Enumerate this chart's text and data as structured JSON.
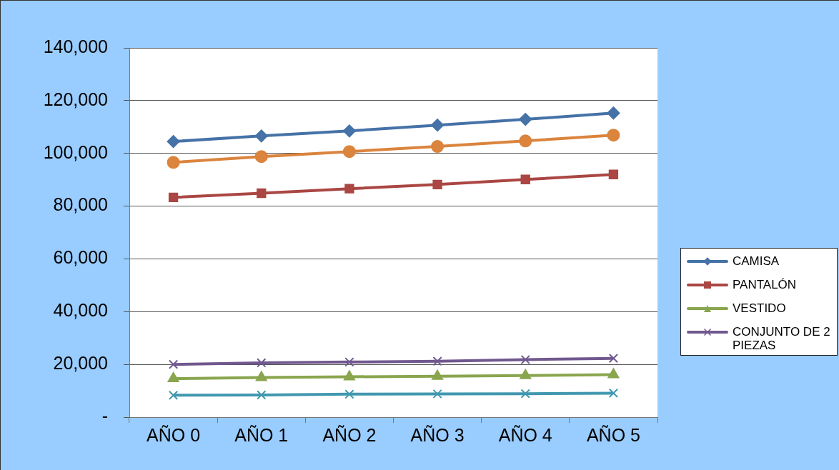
{
  "chart_data": {
    "type": "line",
    "categories": [
      "AÑO 0",
      "AÑO 1",
      "AÑO 2",
      "AÑO 3",
      "AÑO 4",
      "AÑO 5"
    ],
    "series": [
      {
        "name": "CAMISA",
        "color": "#4572a7",
        "marker": "diamond",
        "values": [
          104500,
          106600,
          108500,
          110700,
          112900,
          115300
        ]
      },
      {
        "name": "PANTALÓN",
        "color": "#aa4643",
        "marker": "square",
        "values": [
          83300,
          84900,
          86600,
          88200,
          90100,
          92000
        ]
      },
      {
        "name": "VESTIDO",
        "color": "#89a54e",
        "marker": "triangle",
        "values": [
          14600,
          15000,
          15300,
          15500,
          15800,
          16100
        ]
      },
      {
        "name": "CONJUNTO DE 2 PIEZAS",
        "color": "#71588f",
        "marker": "cross",
        "values": [
          20000,
          20600,
          20900,
          21200,
          21800,
          22300
        ]
      },
      {
        "color": "#db843d",
        "marker": "circle",
        "values": [
          96600,
          98800,
          100700,
          102600,
          104700,
          106900
        ]
      },
      {
        "color": "#4198af",
        "marker": "cross",
        "values": [
          8300,
          8400,
          8700,
          8800,
          8900,
          9100
        ]
      }
    ],
    "ylim": [
      0,
      140000
    ],
    "yticks": [
      {
        "value": 0,
        "label": "-"
      },
      {
        "value": 20000,
        "label": "20,000"
      },
      {
        "value": 40000,
        "label": "40,000"
      },
      {
        "value": 60000,
        "label": "60,000"
      },
      {
        "value": 80000,
        "label": "80,000"
      },
      {
        "value": 100000,
        "label": "100,000"
      },
      {
        "value": 120000,
        "label": "120,000"
      },
      {
        "value": 140000,
        "label": "140,000"
      }
    ],
    "grid": "y",
    "legend": "right"
  }
}
